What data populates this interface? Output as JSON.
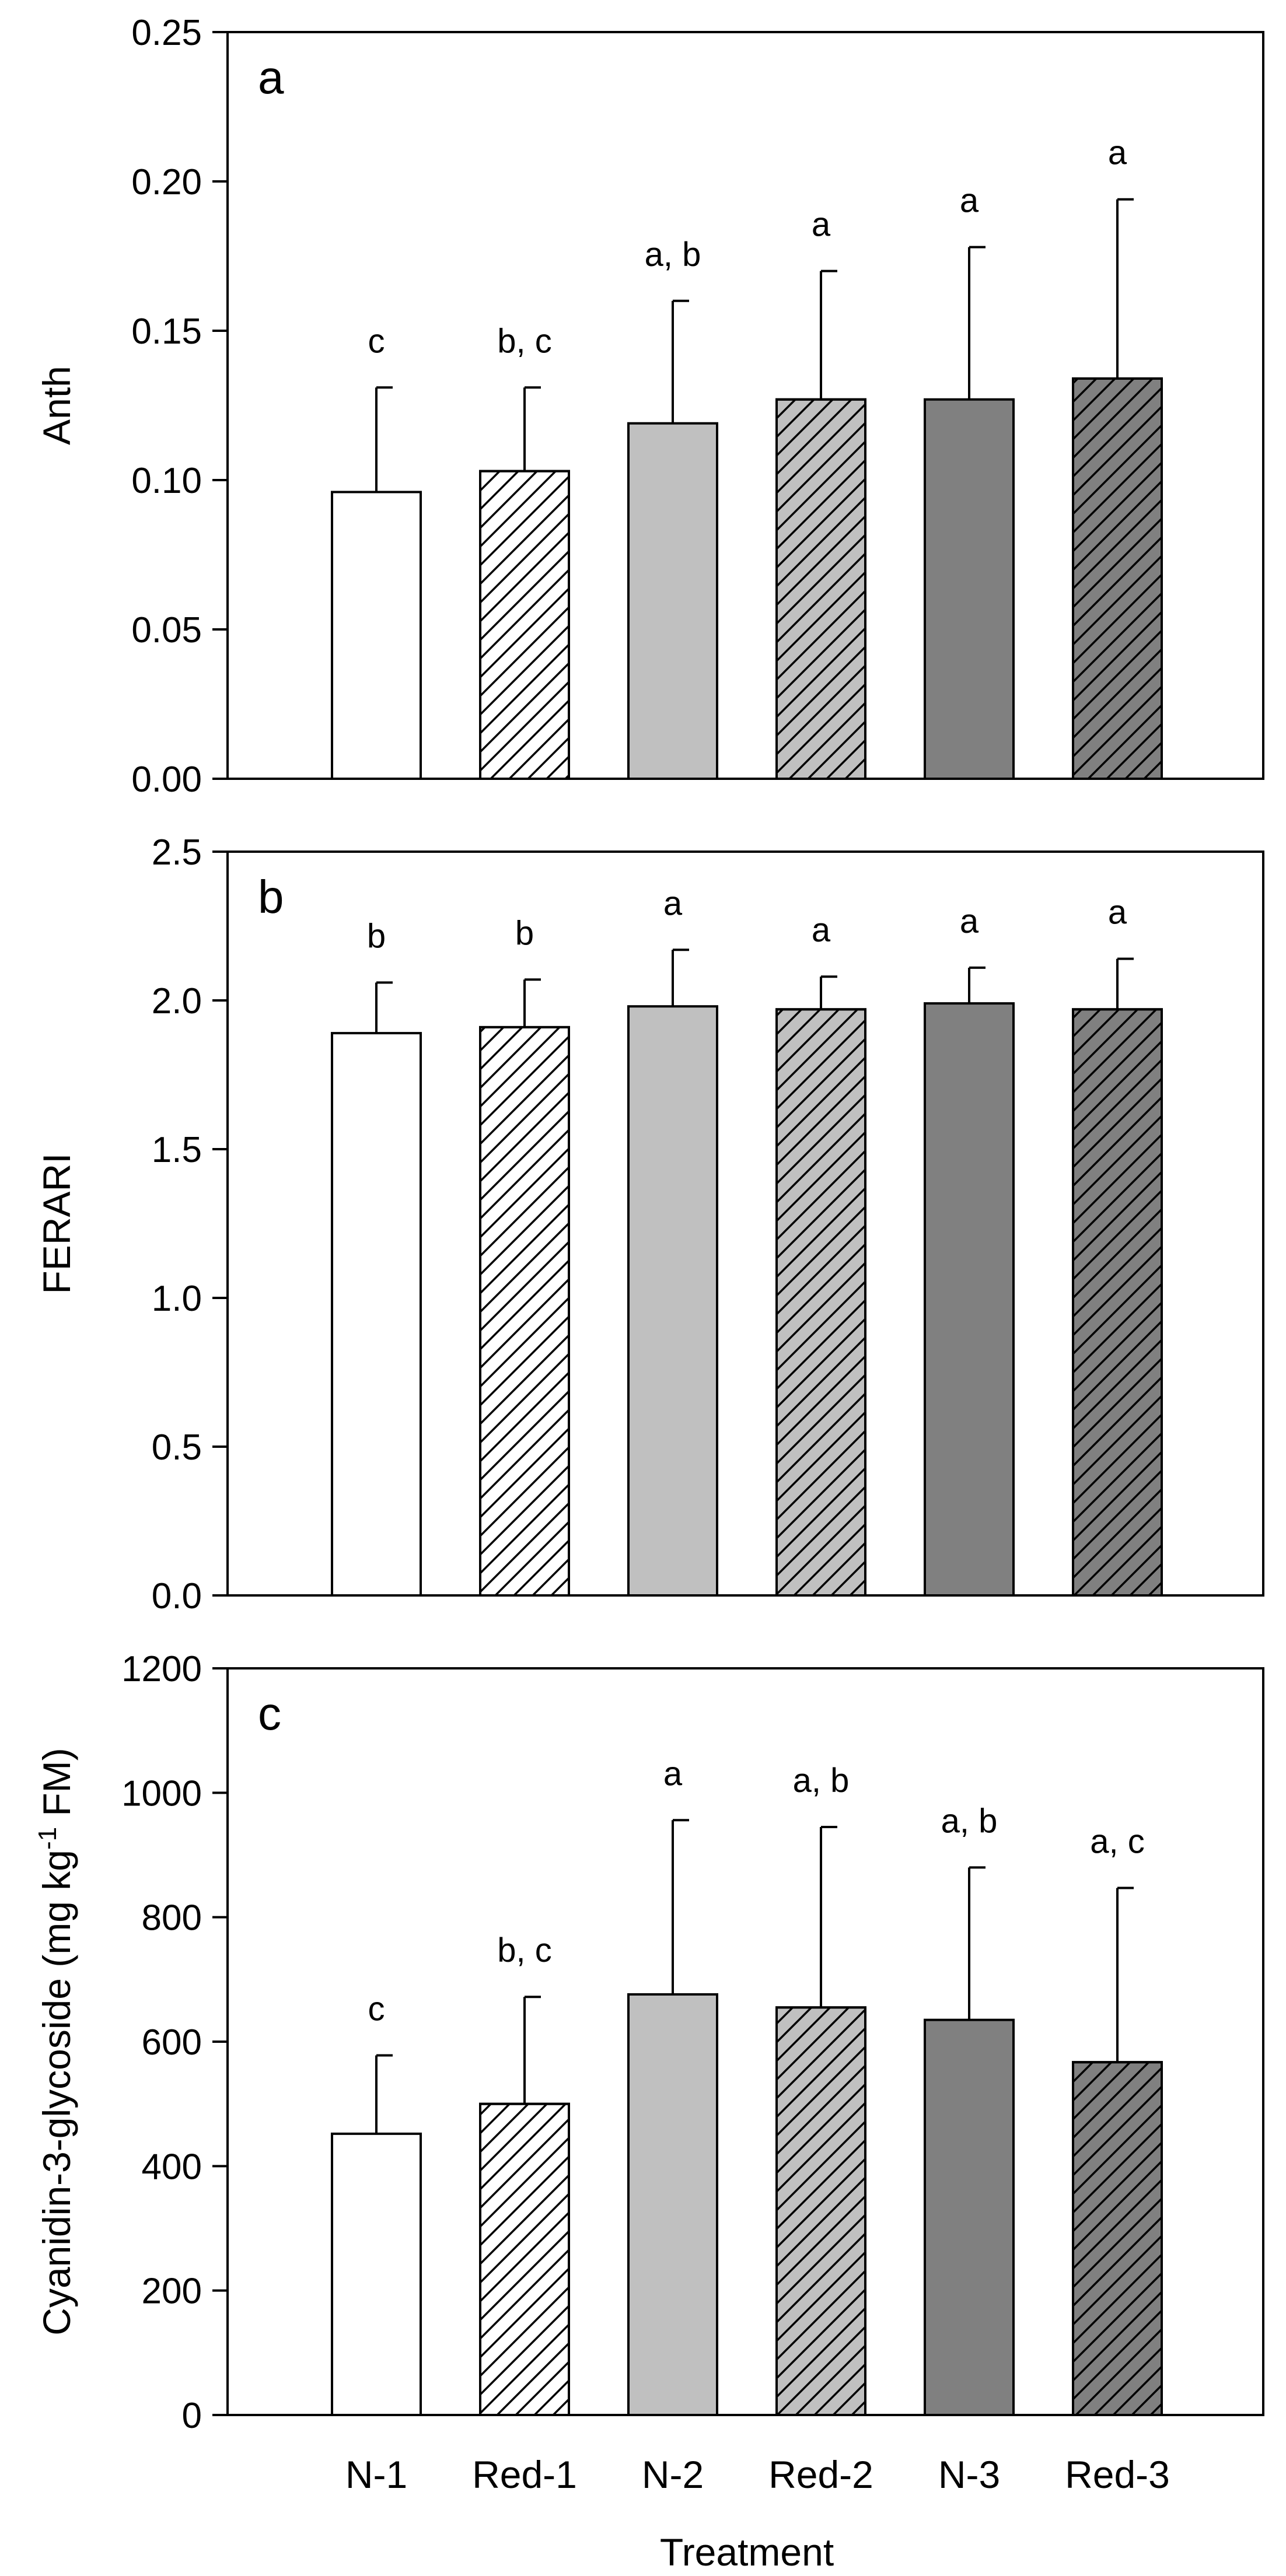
{
  "chart_data": [
    {
      "type": "bar",
      "panel_label": "a",
      "title": "",
      "ylabel": "Anth",
      "ylabel_parts": [
        {
          "text": "Anth",
          "sup": false
        }
      ],
      "xlabel": "",
      "ylim": [
        0,
        0.25
      ],
      "yticks": [
        0,
        0.05,
        0.1,
        0.15,
        0.2,
        0.25
      ],
      "ytick_labels": [
        "0.00",
        "0.05",
        "0.10",
        "0.15",
        "0.20",
        "0.25"
      ],
      "categories": [
        "N-1",
        "Red-1",
        "N-2",
        "Red-2",
        "N-3",
        "Red-3"
      ],
      "values": [
        0.096,
        0.103,
        0.119,
        0.127,
        0.127,
        0.134
      ],
      "errors": [
        0.035,
        0.028,
        0.041,
        0.043,
        0.051,
        0.06
      ],
      "significance": [
        "c",
        "b, c",
        "a, b",
        "a",
        "a",
        "a"
      ],
      "show_xticklabels": false
    },
    {
      "type": "bar",
      "panel_label": "b",
      "title": "",
      "ylabel": "FERARI",
      "ylabel_parts": [
        {
          "text": "FERARI",
          "sup": false
        }
      ],
      "xlabel": "",
      "ylim": [
        0,
        2.5
      ],
      "yticks": [
        0,
        0.5,
        1.0,
        1.5,
        2.0,
        2.5
      ],
      "ytick_labels": [
        "0.0",
        "0.5",
        "1.0",
        "1.5",
        "2.0",
        "2.5"
      ],
      "categories": [
        "N-1",
        "Red-1",
        "N-2",
        "Red-2",
        "N-3",
        "Red-3"
      ],
      "values": [
        1.89,
        1.91,
        1.98,
        1.97,
        1.99,
        1.97
      ],
      "errors": [
        0.17,
        0.16,
        0.19,
        0.11,
        0.12,
        0.17
      ],
      "significance": [
        "b",
        "b",
        "a",
        "a",
        "a",
        "a"
      ],
      "show_xticklabels": false
    },
    {
      "type": "bar",
      "panel_label": "c",
      "title": "",
      "ylabel": "Cyanidin-3-glycoside (mg kg-1 FM)",
      "ylabel_parts": [
        {
          "text": "Cyanidin-3-glycoside (mg kg",
          "sup": false
        },
        {
          "text": "-1",
          "sup": true
        },
        {
          "text": " FM)",
          "sup": false
        }
      ],
      "xlabel": "Treatment",
      "ylim": [
        0,
        1200
      ],
      "yticks": [
        0,
        200,
        400,
        600,
        800,
        1000,
        1200
      ],
      "ytick_labels": [
        "0",
        "200",
        "400",
        "600",
        "800",
        "1000",
        "1200"
      ],
      "categories": [
        "N-1",
        "Red-1",
        "N-2",
        "Red-2",
        "N-3",
        "Red-3"
      ],
      "values": [
        452,
        500,
        676,
        655,
        635,
        567
      ],
      "errors": [
        126,
        172,
        280,
        290,
        245,
        280
      ],
      "significance": [
        "c",
        "b, c",
        "a",
        "a, b",
        "a, b",
        "a, c"
      ],
      "show_xticklabels": true
    }
  ],
  "bar_styles": [
    {
      "fill": "#ffffff",
      "hatch": false
    },
    {
      "fill": "#ffffff",
      "hatch": true
    },
    {
      "fill": "#c0c0c0",
      "hatch": false
    },
    {
      "fill": "#c0c0c0",
      "hatch": true
    },
    {
      "fill": "#808080",
      "hatch": false
    },
    {
      "fill": "#808080",
      "hatch": true
    }
  ]
}
